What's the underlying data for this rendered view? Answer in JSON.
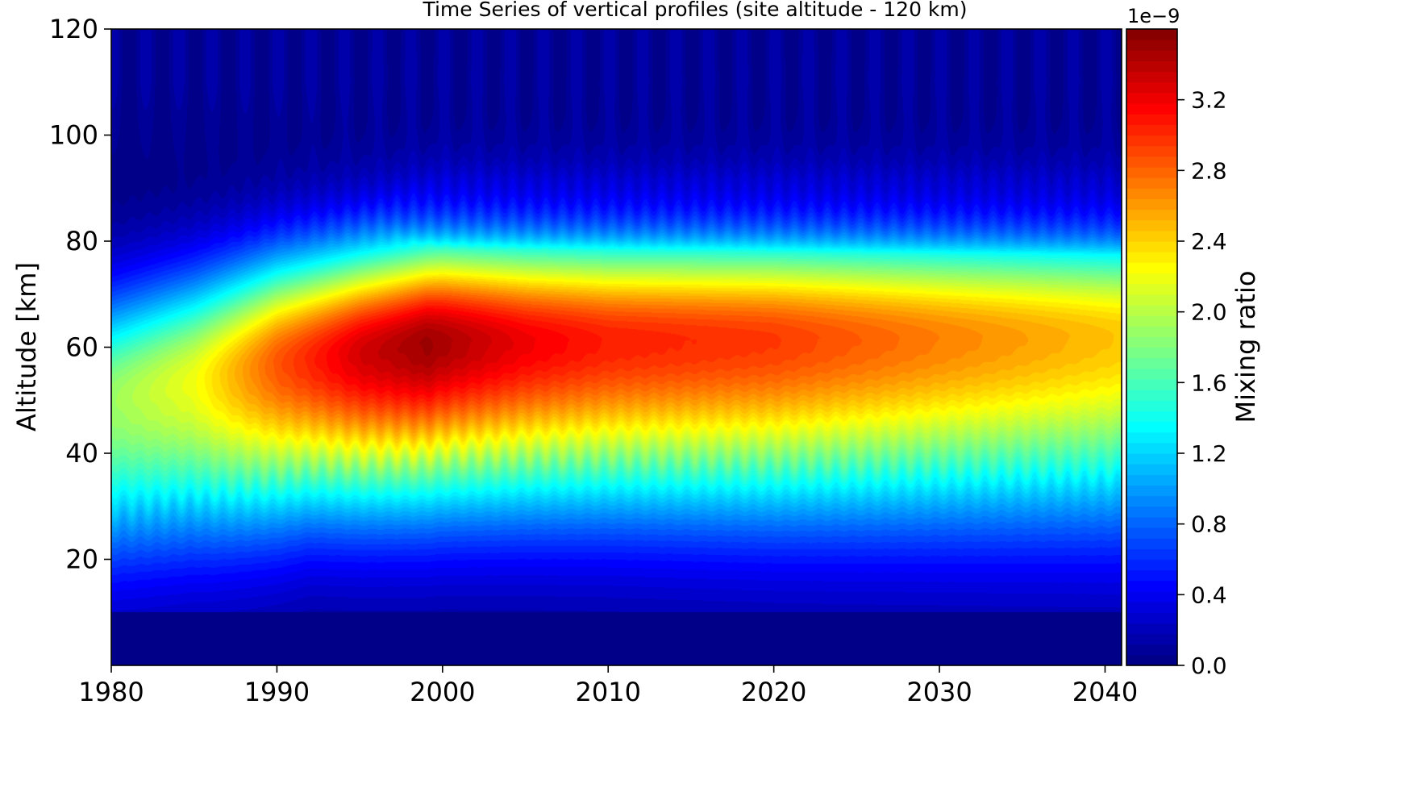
{
  "chart_data": {
    "type": "heatmap",
    "title": "Time Series of vertical profiles (site altitude - 120 km)",
    "xlabel": "",
    "ylabel": "Altitude [km]",
    "xlim": [
      1980,
      2041
    ],
    "ylim": [
      0,
      120
    ],
    "xticks": [
      1980,
      1990,
      2000,
      2010,
      2020,
      2030,
      2040
    ],
    "yticks": [
      20,
      40,
      60,
      80,
      100,
      120
    ],
    "colorbar": {
      "label": "Mixing ratio",
      "multiplier": "1e−9",
      "range": [
        0.0,
        3.6
      ],
      "ticks": [
        "0.0",
        "0.4",
        "0.8",
        "1.2",
        "1.6",
        "2.0",
        "2.4",
        "2.8",
        "3.2"
      ],
      "colormap": "jet"
    },
    "surface": {
      "units": "1e-9",
      "floor_altitude_km": 10,
      "peak": {
        "year": 1999,
        "altitude_km": 60,
        "value": 3.5
      },
      "max_by_year": [
        {
          "year": 1980,
          "value": 1.9
        },
        {
          "year": 1985,
          "value": 2.2
        },
        {
          "year": 1990,
          "value": 2.85
        },
        {
          "year": 1995,
          "value": 3.3
        },
        {
          "year": 1999,
          "value": 3.5
        },
        {
          "year": 2005,
          "value": 3.2
        },
        {
          "year": 2010,
          "value": 3.05
        },
        {
          "year": 2020,
          "value": 2.95
        },
        {
          "year": 2030,
          "value": 2.7
        },
        {
          "year": 2041,
          "value": 2.45
        }
      ],
      "layer_center_km": [
        {
          "year": 1980,
          "value": 50
        },
        {
          "year": 1990,
          "value": 57
        },
        {
          "year": 2000,
          "value": 61
        },
        {
          "year": 2041,
          "value": 62
        }
      ],
      "layer_bottom_km": [
        {
          "year": 1980,
          "value": 22
        },
        {
          "year": 1986,
          "value": 26
        },
        {
          "year": 1992,
          "value": 31
        },
        {
          "year": 2000,
          "value": 33
        },
        {
          "year": 2041,
          "value": 30
        }
      ],
      "layer_top_km": 83,
      "seasonal_cycles": 61
    }
  }
}
